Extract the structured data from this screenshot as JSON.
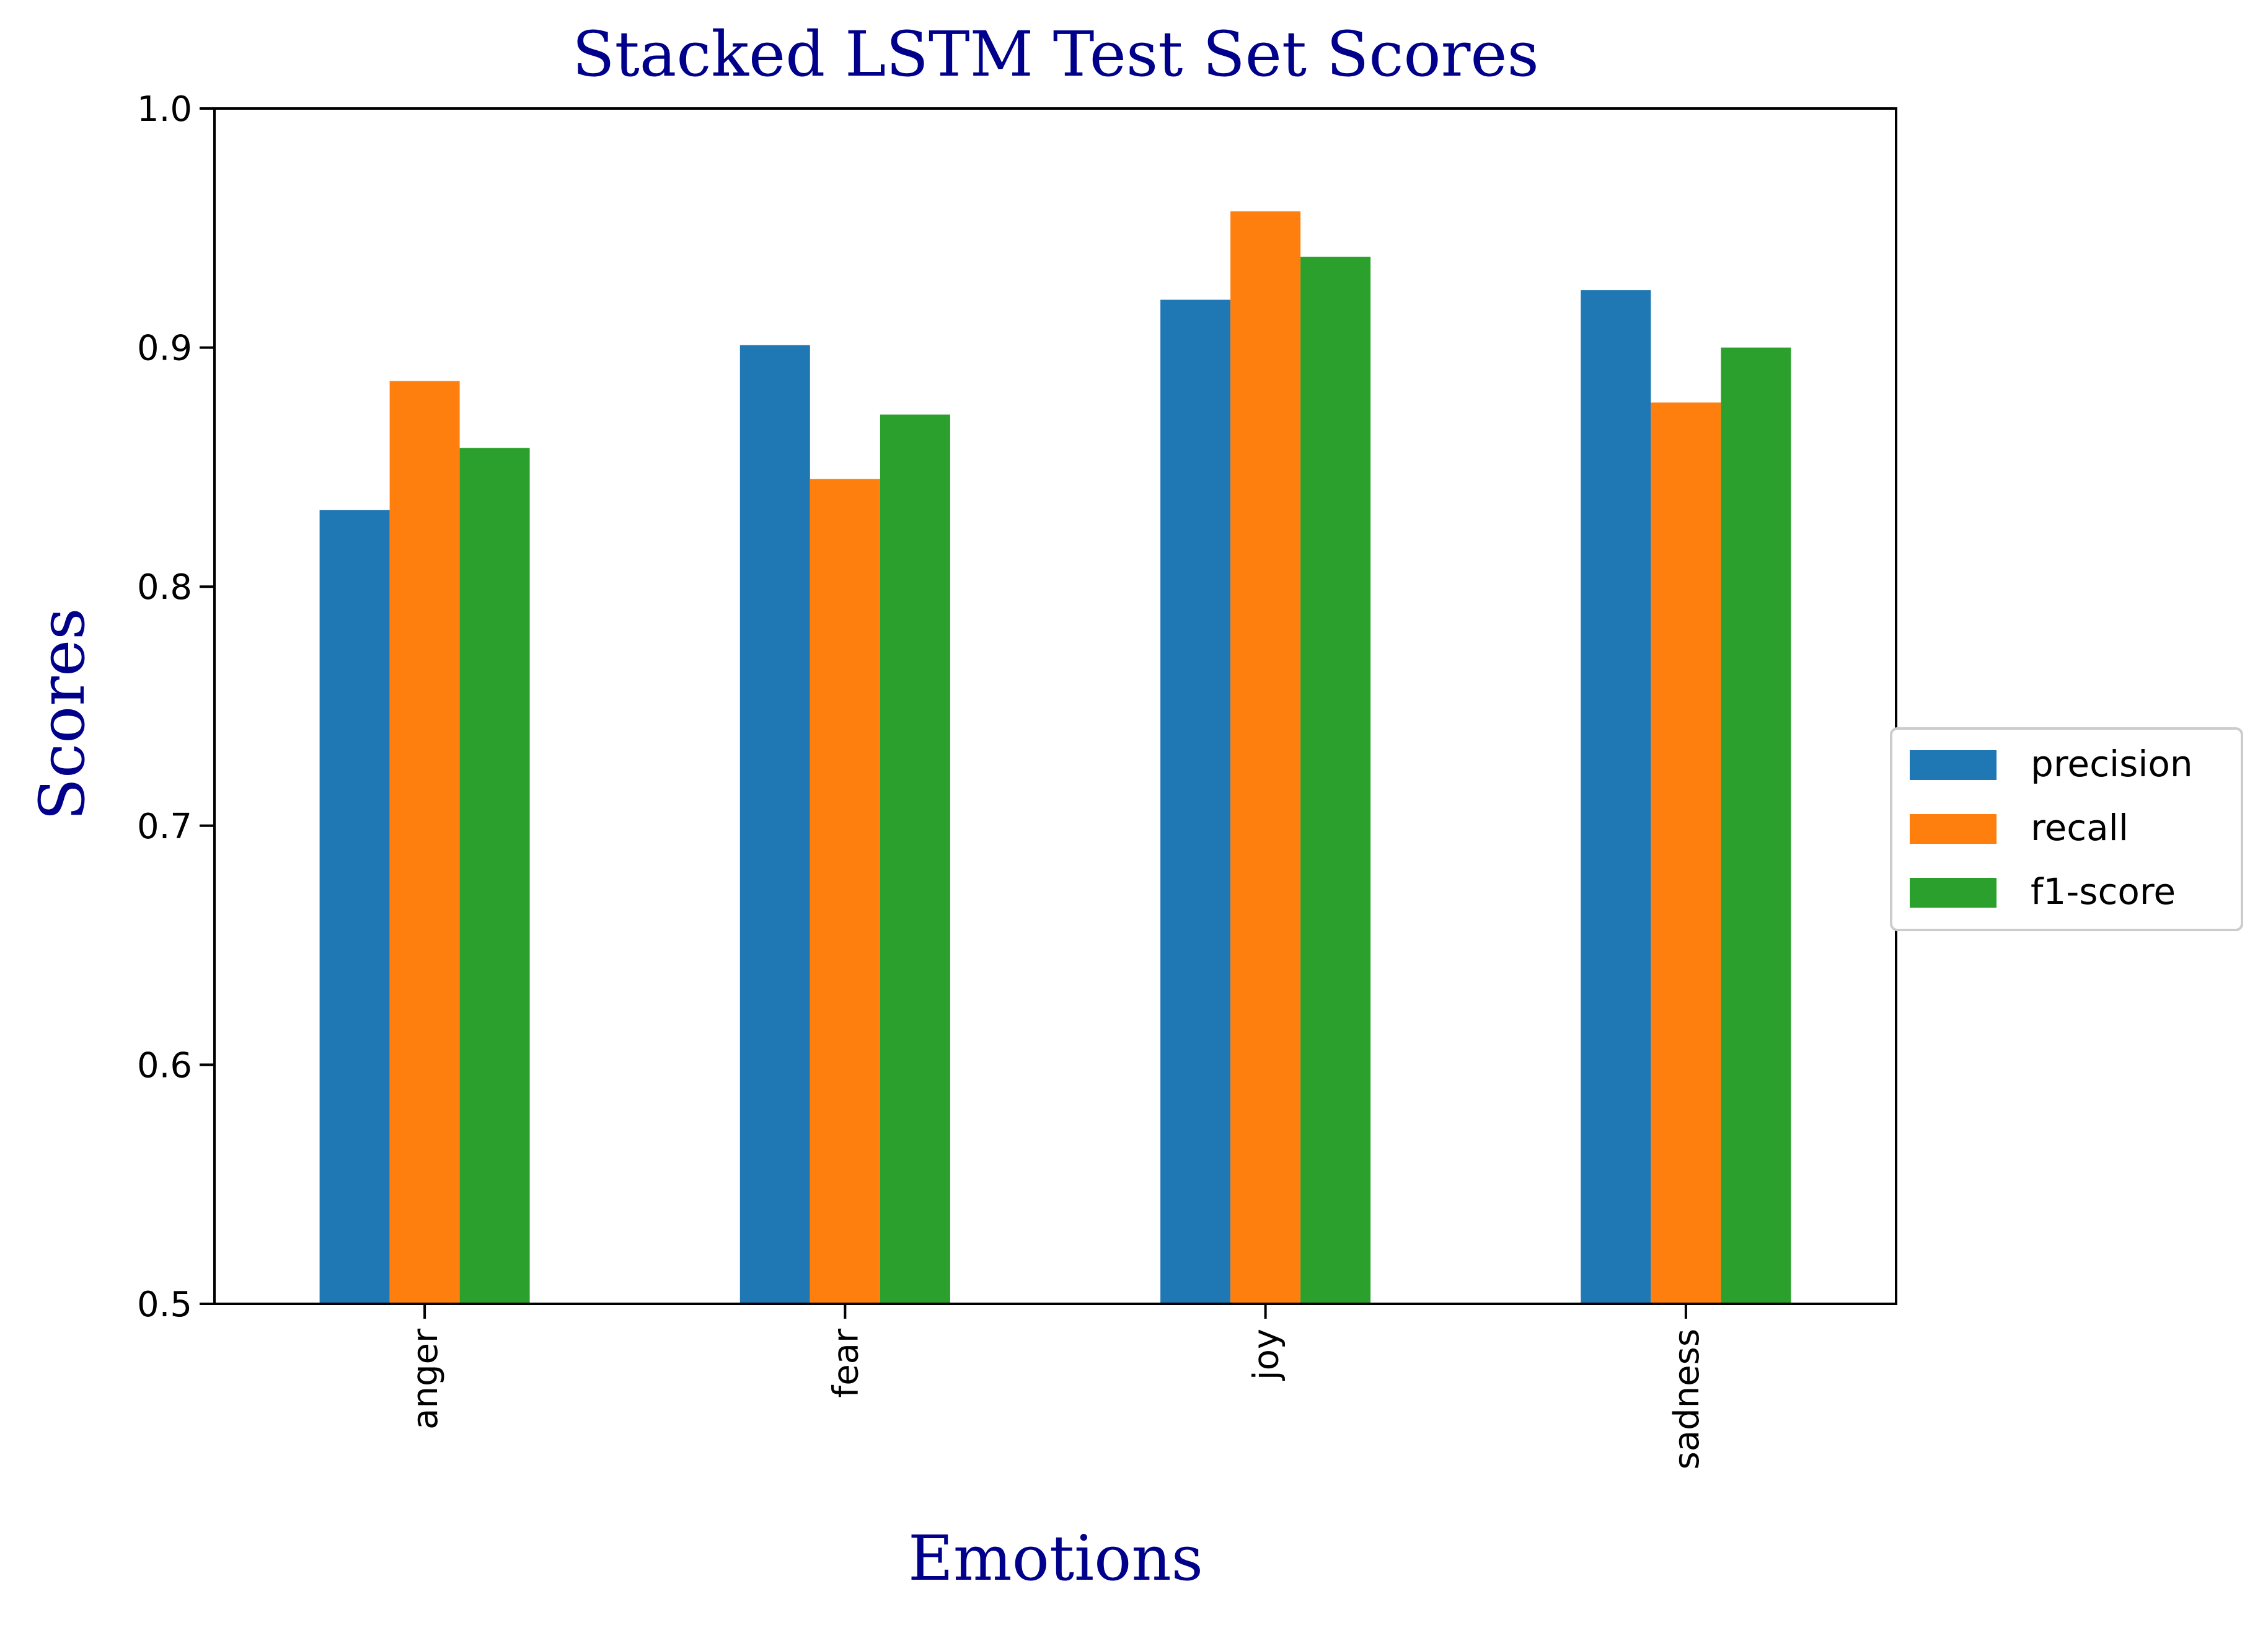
{
  "chart_data": {
    "type": "bar",
    "title": "Stacked LSTM Test Set Scores",
    "xlabel": "Emotions",
    "ylabel": "Scores",
    "ylim": [
      0.5,
      1.0
    ],
    "yticks": [
      0.5,
      0.6,
      0.7,
      0.8,
      0.9,
      1.0
    ],
    "ytick_labels": [
      "0.5",
      "0.6",
      "0.7",
      "0.8",
      "0.9",
      "1.0"
    ],
    "categories": [
      "anger",
      "fear",
      "joy",
      "sadness"
    ],
    "series": [
      {
        "name": "precision",
        "color": "#1f77b4",
        "values": [
          0.832,
          0.901,
          0.92,
          0.924
        ]
      },
      {
        "name": "recall",
        "color": "#ff7f0e",
        "values": [
          0.886,
          0.845,
          0.957,
          0.877
        ]
      },
      {
        "name": "f1-score",
        "color": "#2ca02c",
        "values": [
          0.858,
          0.872,
          0.938,
          0.9
        ]
      }
    ],
    "legend": "right",
    "grid": false,
    "title_color": "#00008b"
  }
}
